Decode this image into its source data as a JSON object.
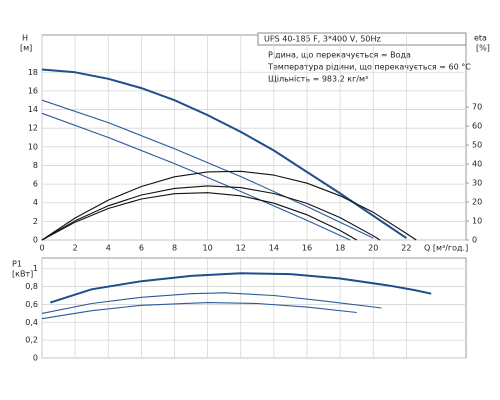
{
  "chart_data": [
    {
      "type": "line",
      "ylabel": "H",
      "yunit": "[м]",
      "y2label": "eta",
      "y2unit": "[%]",
      "xlabel": "Q [м³/год.]",
      "model": "UPS 40-185 F, 3*400 V, 50Hz",
      "notes": [
        "Рідина, що перекачується = Вода",
        "Температура рідини, що перекачується = 60 °C",
        "Щільність = 983.2 кг/м³"
      ],
      "xlim": [
        0,
        25.6
      ],
      "xticks": [
        0,
        2,
        4,
        6,
        8,
        10,
        12,
        14,
        16,
        18,
        20,
        22
      ],
      "ylim": [
        0,
        22
      ],
      "yticks": [
        0,
        2,
        4,
        6,
        8,
        10,
        12,
        14,
        16,
        18
      ],
      "y2lim": [
        0,
        108
      ],
      "y2ticks": [
        0,
        10,
        20,
        30,
        40,
        50,
        60,
        70
      ],
      "grid": true,
      "series": [
        {
          "color": "#1f4e8c",
          "x": [
            0,
            2,
            4,
            6,
            8,
            10,
            12,
            14,
            16,
            18,
            20,
            22
          ],
          "values": [
            18.3,
            18,
            17.3,
            16.3,
            15,
            13.4,
            11.6,
            9.6,
            7.3,
            5,
            2.6,
            0.2
          ]
        },
        {
          "color": "#2a5a9a",
          "x": [
            0,
            4,
            8,
            12,
            16,
            20
          ],
          "values": [
            15,
            12.6,
            9.8,
            6.8,
            3.6,
            0.2
          ]
        },
        {
          "color": "#2a5a9a",
          "x": [
            0,
            4,
            8,
            12,
            16,
            18.6
          ],
          "values": [
            13.6,
            11,
            8.2,
            5.2,
            2.1,
            0
          ]
        },
        {
          "color": "#111111",
          "axis": "y2",
          "x": [
            0,
            2,
            4,
            6,
            8,
            10,
            12,
            14,
            16,
            18,
            20,
            22,
            22.6
          ],
          "values": [
            0,
            11.6,
            21,
            28.2,
            33.3,
            35.9,
            36.2,
            34.2,
            29.9,
            23.3,
            14.6,
            3.4,
            0
          ]
        },
        {
          "color": "#111111",
          "axis": "y2",
          "x": [
            0,
            2,
            4,
            6,
            8,
            10,
            12,
            14,
            16,
            18,
            20,
            20.4
          ],
          "values": [
            0,
            10.1,
            18,
            23.7,
            27.2,
            28.5,
            27.6,
            24.5,
            19.3,
            11.8,
            2.2,
            0
          ]
        },
        {
          "color": "#111111",
          "axis": "y2",
          "x": [
            0,
            2,
            4,
            6,
            8,
            10,
            12,
            14,
            16,
            18,
            19
          ],
          "values": [
            0,
            9.4,
            16.6,
            21.6,
            24.4,
            24.9,
            23.3,
            19.4,
            13.3,
            5,
            0
          ]
        }
      ]
    },
    {
      "type": "line",
      "ylabel": "P1",
      "yunit": "[кВт]",
      "xlim": [
        0,
        25.6
      ],
      "xticks": [
        0,
        2,
        4,
        6,
        8,
        10,
        12,
        14,
        16,
        18,
        20,
        22
      ],
      "ylim": [
        0,
        1.12
      ],
      "yticks": [
        0,
        {
          "value": 0.2,
          "label": "0,2"
        },
        {
          "value": 0.4,
          "label": "0,4"
        },
        {
          "value": 0.6,
          "label": "0,6"
        },
        {
          "value": 0.8,
          "label": "0,8"
        },
        1
      ],
      "grid": true,
      "series": [
        {
          "color": "#1f4e8c",
          "x": [
            0.5,
            3,
            6,
            9,
            12,
            15,
            18,
            21,
            22.5,
            23.5
          ],
          "values": [
            0.62,
            0.77,
            0.86,
            0.92,
            0.95,
            0.94,
            0.89,
            0.81,
            0.76,
            0.72
          ]
        },
        {
          "color": "#2a5a9a",
          "x": [
            0,
            3,
            6,
            9,
            11,
            14,
            17,
            20.5
          ],
          "values": [
            0.5,
            0.61,
            0.68,
            0.72,
            0.73,
            0.7,
            0.64,
            0.56
          ]
        },
        {
          "color": "#2a5a9a",
          "x": [
            0,
            3,
            6,
            10,
            13,
            16,
            19
          ],
          "values": [
            0.44,
            0.53,
            0.59,
            0.62,
            0.61,
            0.57,
            0.51
          ]
        }
      ]
    }
  ]
}
